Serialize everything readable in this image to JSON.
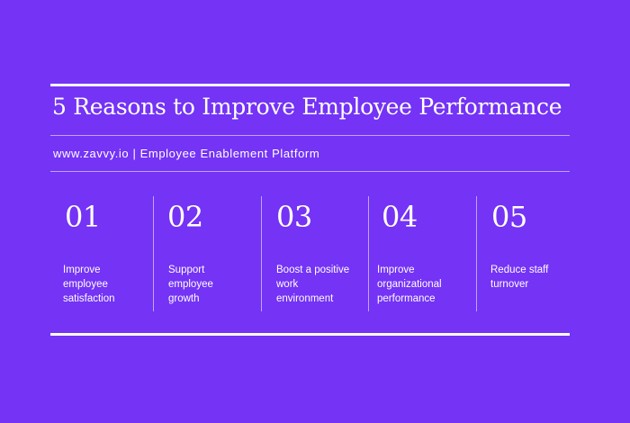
{
  "title": "5 Reasons to Improve Employee Performance",
  "subtitle": "www.zavvy.io | Employee Enablement Platform",
  "reasons": [
    {
      "number": "01",
      "lines": [
        "Improve",
        "employee",
        "satisfaction"
      ]
    },
    {
      "number": "02",
      "lines": [
        "Support",
        "employee",
        "growth"
      ]
    },
    {
      "number": "03",
      "lines": [
        "Boost a positive",
        "work",
        "environment"
      ]
    },
    {
      "number": "04",
      "lines": [
        "Improve",
        "organizational",
        "performance"
      ]
    },
    {
      "number": "05",
      "lines": [
        "Reduce staff",
        "turnover"
      ]
    }
  ],
  "colors": {
    "background": "#7433f5",
    "text": "#ffffff"
  }
}
